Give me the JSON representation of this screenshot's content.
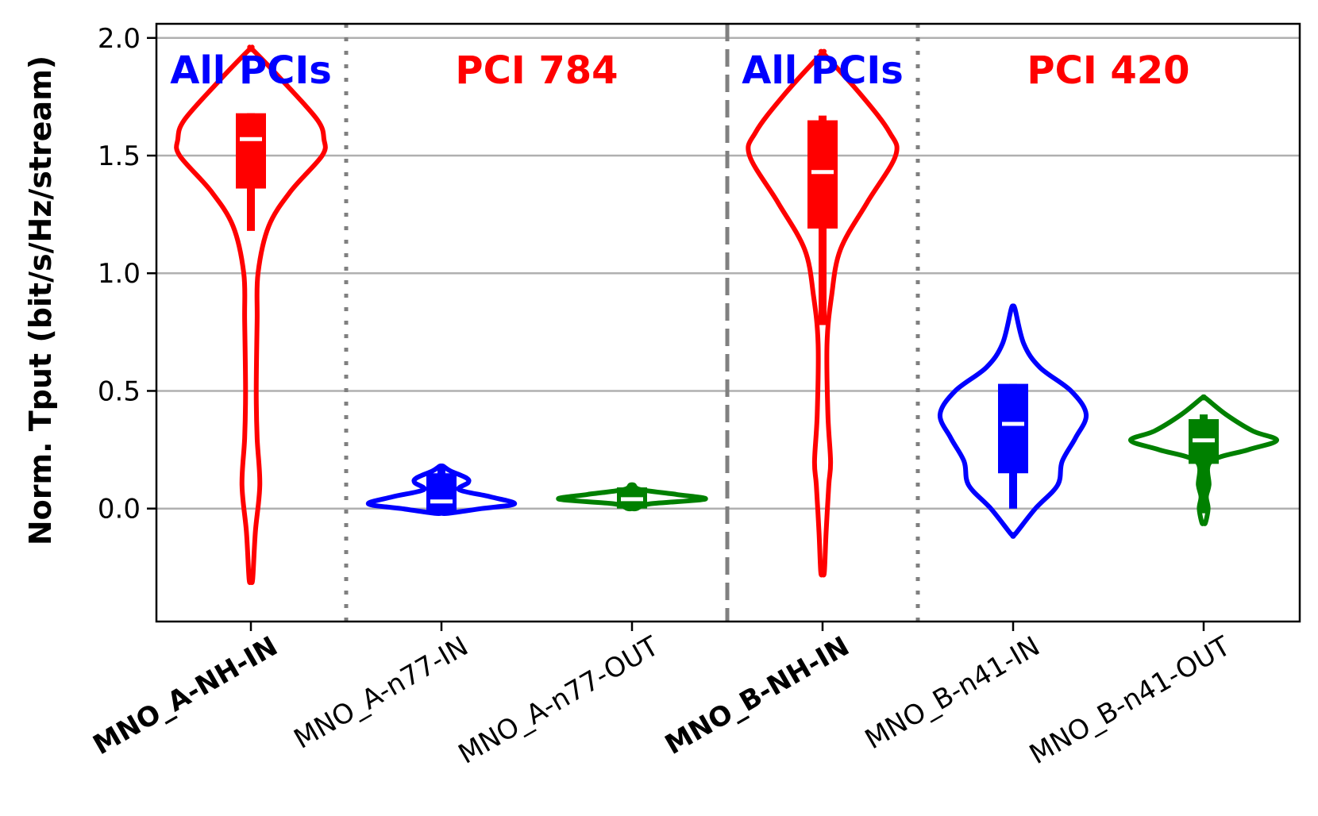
{
  "chart_data": {
    "type": "violin",
    "ylabel": "Norm. Tput (bit/s/Hz/stream)",
    "xlabel": "",
    "ylim": [
      -0.48,
      2.06
    ],
    "yticks": [
      {
        "value": 0.0,
        "label": "0.0"
      },
      {
        "value": 0.5,
        "label": "0.5"
      },
      {
        "value": 1.0,
        "label": "1.0"
      },
      {
        "value": 1.5,
        "label": "1.5"
      },
      {
        "value": 2.0,
        "label": "2.0"
      }
    ],
    "grid": "horizontal",
    "categories": [
      {
        "label": "MNO_A-NH-IN",
        "bold": true,
        "color": "#ff0000",
        "min": -0.3,
        "max": 1.95,
        "q1": 1.36,
        "median": 1.57,
        "q3": 1.68,
        "whisker_low": 1.18,
        "whisker_high": 1.68,
        "profile": [
          [
            -0.3,
            0.02
          ],
          [
            -0.1,
            0.05
          ],
          [
            0.1,
            0.1
          ],
          [
            0.3,
            0.07
          ],
          [
            0.5,
            0.06
          ],
          [
            0.8,
            0.07
          ],
          [
            1.0,
            0.08
          ],
          [
            1.2,
            0.2
          ],
          [
            1.35,
            0.45
          ],
          [
            1.5,
            0.8
          ],
          [
            1.57,
            0.82
          ],
          [
            1.65,
            0.75
          ],
          [
            1.8,
            0.4
          ],
          [
            1.95,
            0.02
          ]
        ]
      },
      {
        "label": "MNO_A-n77-IN",
        "bold": false,
        "color": "#0000ff",
        "min": -0.02,
        "max": 0.18,
        "q1": -0.02,
        "median": 0.03,
        "q3": 0.15,
        "whisker_low": -0.02,
        "whisker_high": 0.18,
        "profile": [
          [
            -0.02,
            0.08
          ],
          [
            0.0,
            0.45
          ],
          [
            0.02,
            0.82
          ],
          [
            0.05,
            0.55
          ],
          [
            0.08,
            0.2
          ],
          [
            0.11,
            0.3
          ],
          [
            0.13,
            0.28
          ],
          [
            0.16,
            0.1
          ],
          [
            0.18,
            0.02
          ]
        ]
      },
      {
        "label": "MNO_A-n77-OUT",
        "bold": false,
        "color": "#008000",
        "min": 0.0,
        "max": 0.1,
        "q1": 0.0,
        "median": 0.04,
        "q3": 0.09,
        "whisker_low": 0.0,
        "whisker_high": 0.1,
        "profile": [
          [
            0.0,
            0.05
          ],
          [
            0.02,
            0.2
          ],
          [
            0.04,
            0.82
          ],
          [
            0.06,
            0.5
          ],
          [
            0.08,
            0.1
          ],
          [
            0.1,
            0.02
          ]
        ]
      },
      {
        "label": "MNO_B-NH-IN",
        "bold": true,
        "color": "#ff0000",
        "min": -0.27,
        "max": 1.93,
        "q1": 1.19,
        "median": 1.43,
        "q3": 1.65,
        "whisker_low": 0.78,
        "whisker_high": 1.67,
        "profile": [
          [
            -0.27,
            0.02
          ],
          [
            -0.1,
            0.04
          ],
          [
            0.1,
            0.07
          ],
          [
            0.2,
            0.09
          ],
          [
            0.4,
            0.06
          ],
          [
            0.7,
            0.05
          ],
          [
            0.9,
            0.1
          ],
          [
            1.1,
            0.2
          ],
          [
            1.3,
            0.5
          ],
          [
            1.5,
            0.82
          ],
          [
            1.6,
            0.75
          ],
          [
            1.75,
            0.45
          ],
          [
            1.93,
            0.02
          ]
        ]
      },
      {
        "label": "MNO_B-n41-IN",
        "bold": false,
        "color": "#0000ff",
        "min": -0.11,
        "max": 0.85,
        "q1": 0.15,
        "median": 0.36,
        "q3": 0.53,
        "whisker_low": 0.0,
        "whisker_high": 0.53,
        "profile": [
          [
            -0.11,
            0.02
          ],
          [
            0.0,
            0.25
          ],
          [
            0.1,
            0.5
          ],
          [
            0.2,
            0.55
          ],
          [
            0.3,
            0.7
          ],
          [
            0.4,
            0.82
          ],
          [
            0.5,
            0.65
          ],
          [
            0.6,
            0.3
          ],
          [
            0.7,
            0.12
          ],
          [
            0.85,
            0.02
          ]
        ]
      },
      {
        "label": "MNO_B-n41-OUT",
        "bold": false,
        "color": "#008000",
        "min": -0.06,
        "max": 0.47,
        "q1": 0.19,
        "median": 0.29,
        "q3": 0.38,
        "whisker_low": -0.02,
        "whisker_high": 0.4,
        "profile": [
          [
            -0.06,
            0.02
          ],
          [
            0.0,
            0.05
          ],
          [
            0.05,
            0.03
          ],
          [
            0.1,
            0.06
          ],
          [
            0.2,
            0.08
          ],
          [
            0.25,
            0.5
          ],
          [
            0.29,
            0.82
          ],
          [
            0.33,
            0.55
          ],
          [
            0.4,
            0.25
          ],
          [
            0.47,
            0.02
          ]
        ]
      }
    ],
    "separators": [
      {
        "after_category": 0,
        "style": "dotted"
      },
      {
        "after_category": 2,
        "style": "dashed"
      },
      {
        "after_category": 3,
        "style": "dotted"
      }
    ],
    "annotations": [
      {
        "text": "All PCIs",
        "color": "#0000ff",
        "category": 0
      },
      {
        "text": "PCI 784",
        "color": "#ff0000",
        "category": 1.5
      },
      {
        "text": "All PCIs",
        "color": "#0000ff",
        "category": 3
      },
      {
        "text": "PCI 420",
        "color": "#ff0000",
        "category": 4.5
      }
    ],
    "colors": {
      "grid": "#b0b0b0",
      "separator": "#808080",
      "median": "#ffffff",
      "axis": "#000000"
    }
  }
}
